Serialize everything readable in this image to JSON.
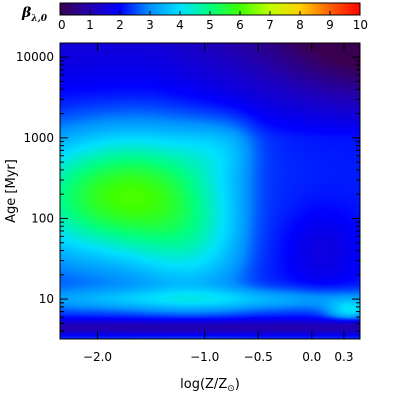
{
  "chart_data": {
    "type": "heatmap",
    "xlabel": "log(Z/Z",
    "xlabel_sub": "⊙",
    "xlabel_close": ")",
    "ylabel": "Age [Myr]",
    "x_scale": "log-metallicity",
    "y_scale": "log",
    "x_range": [
      -2.35,
      0.45
    ],
    "y_range": [
      3.2,
      15000
    ],
    "x_ticks": [
      {
        "value": -2.0,
        "label": "−2.0"
      },
      {
        "value": -1.0,
        "label": "−1.0"
      },
      {
        "value": -0.5,
        "label": "−0.5"
      },
      {
        "value": 0.0,
        "label": "0.0"
      },
      {
        "value": 0.3,
        "label": "0.3"
      }
    ],
    "y_ticks": [
      {
        "value": 10,
        "label": "10"
      },
      {
        "value": 100,
        "label": "100"
      },
      {
        "value": 1000,
        "label": "1000"
      },
      {
        "value": 10000,
        "label": "10000"
      }
    ],
    "colorbar": {
      "label": "β",
      "label_sub": "λ,0",
      "min": 0,
      "max": 10,
      "ticks": [
        {
          "value": 0,
          "label": "0"
        },
        {
          "value": 1,
          "label": "1"
        },
        {
          "value": 2,
          "label": "2"
        },
        {
          "value": 3,
          "label": "3"
        },
        {
          "value": 4,
          "label": "4"
        },
        {
          "value": 5,
          "label": "5"
        },
        {
          "value": 6,
          "label": "6"
        },
        {
          "value": 7,
          "label": "7"
        },
        {
          "value": 8,
          "label": "8"
        },
        {
          "value": 9,
          "label": "9"
        },
        {
          "value": 10,
          "label": "10"
        }
      ],
      "colormap": [
        "#3a0050",
        "#2200b0",
        "#0000ff",
        "#0090ff",
        "#00e0ff",
        "#00ff80",
        "#40ff00",
        "#c0ff00",
        "#ffd000",
        "#ff6000",
        "#ff0000"
      ]
    },
    "features": {
      "peak_value": 5.2,
      "peak_at": {
        "log_z": -1.9,
        "age_myr": 180
      },
      "background_value": 2.2,
      "high_age_low_value": 0.6,
      "low_age_band_value": 1.0,
      "low_age_band_age_myr": 4.5
    }
  }
}
